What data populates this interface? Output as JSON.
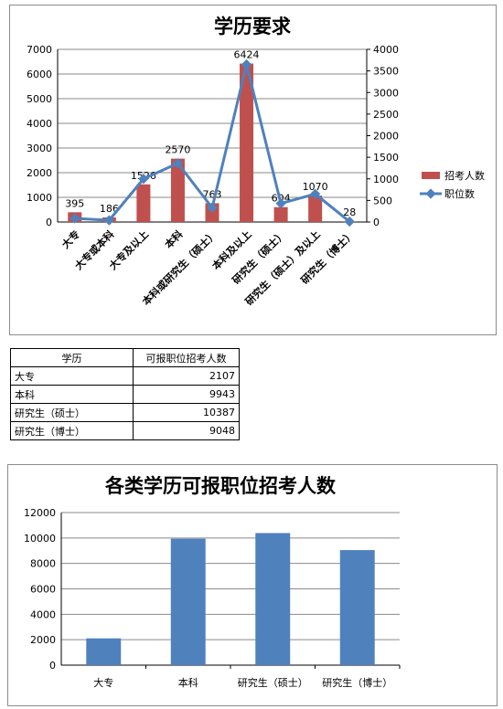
{
  "chart_data": [
    {
      "type": "bar",
      "title": "学历要求",
      "categories": [
        "大专",
        "大专或本科",
        "大专及以上",
        "本科",
        "本科或研究生（硕士）",
        "本科及以上",
        "研究生（硕士）",
        "研究生（硕士）及以上",
        "研究生（博士）"
      ],
      "series": [
        {
          "name": "招考人数",
          "chart": "bar",
          "axis": "left",
          "color": "#c0504d",
          "values": [
            395,
            186,
            1526,
            2570,
            763,
            6424,
            604,
            1070,
            28
          ],
          "data_labels": [
            "395",
            "186",
            "1526",
            "2570",
            "763",
            "6424",
            "604",
            "1070",
            "28"
          ]
        },
        {
          "name": "职位数",
          "chart": "line",
          "axis": "right",
          "color": "#4f81bd",
          "values": [
            85,
            40,
            1000,
            1360,
            330,
            3650,
            430,
            650,
            10
          ]
        }
      ],
      "ylim": [
        0,
        7000
      ],
      "y_ticks": [
        "0",
        "1000",
        "2000",
        "3000",
        "4000",
        "5000",
        "6000",
        "7000"
      ],
      "y2lim": [
        0,
        4000
      ],
      "y2_ticks": [
        "0",
        "500",
        "1000",
        "1500",
        "2000",
        "2500",
        "3000",
        "3500",
        "4000"
      ],
      "grid": true,
      "legend": "right"
    },
    {
      "type": "bar",
      "title": "各类学历可报职位招考人数",
      "categories": [
        "大专",
        "本科",
        "研究生（硕士）",
        "研究生（博士）"
      ],
      "values": [
        2107,
        9943,
        10387,
        9048
      ],
      "color": "#4f81bd",
      "ylim": [
        0,
        12000
      ],
      "y_ticks": [
        "0",
        "2000",
        "4000",
        "6000",
        "8000",
        "10000",
        "12000"
      ],
      "grid": true,
      "legend": "none"
    }
  ],
  "table": {
    "headers": [
      "学历",
      "可报职位招考人数"
    ],
    "rows": [
      [
        "大专",
        "2107"
      ],
      [
        "本科",
        "9943"
      ],
      [
        "研究生（硕士）",
        "10387"
      ],
      [
        "研究生（博士）",
        "9048"
      ]
    ]
  }
}
